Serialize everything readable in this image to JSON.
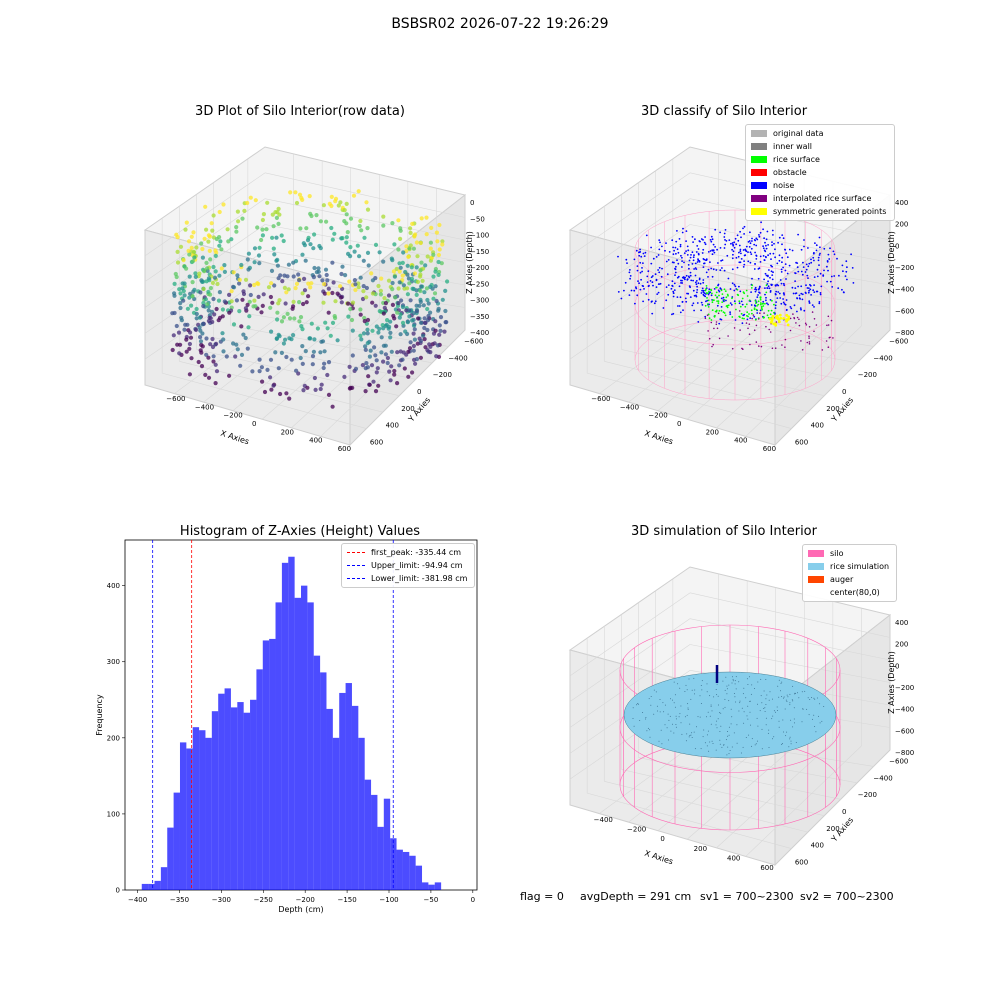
{
  "suptitle": "BSBSR02 2026-07-22 19:26:29",
  "panels": {
    "raw": {
      "title": "3D Plot of Silo Interior(row data)",
      "xlabel": "X Axies",
      "ylabel": "Y Axies",
      "zlabel": "Z Axies (Depth)",
      "xticks": [
        "−600",
        "−400",
        "−200",
        "0",
        "200",
        "400",
        "600"
      ],
      "yticks": [
        "−600",
        "−400",
        "−200",
        "0",
        "200",
        "400",
        "600"
      ],
      "zticks": [
        "0",
        "−50",
        "−100",
        "−150",
        "−200",
        "−250",
        "−300",
        "−350",
        "−400"
      ]
    },
    "classify": {
      "title": "3D classify of Silo Interior",
      "xlabel": "X Axies",
      "ylabel": "Y Axies",
      "zlabel": "Z Axies (Depth)",
      "xticks": [
        "−600",
        "−400",
        "−200",
        "0",
        "200",
        "400",
        "600"
      ],
      "yticks": [
        "−600",
        "−400",
        "−200",
        "0",
        "200",
        "400",
        "600"
      ],
      "zticks": [
        "400",
        "200",
        "0",
        "−200",
        "−400",
        "−600",
        "−800"
      ],
      "legend": [
        {
          "label": "original data",
          "color": "#b3b3b3"
        },
        {
          "label": "inner wall",
          "color": "#808080"
        },
        {
          "label": "rice surface",
          "color": "#00ff00"
        },
        {
          "label": "obstacle",
          "color": "#ff0000"
        },
        {
          "label": "noise",
          "color": "#0000ff"
        },
        {
          "label": "interpolated rice surface",
          "color": "#800080"
        },
        {
          "label": "symmetric generated points",
          "color": "#ffff00"
        }
      ]
    },
    "simulation": {
      "title": "3D simulation of Silo Interior",
      "xlabel": "X Axies",
      "ylabel": "Y Axies",
      "zlabel": "Z Axies (Depth)",
      "xticks": [
        "−400",
        "−200",
        "0",
        "200",
        "400",
        "600"
      ],
      "yticks": [
        "−600",
        "−400",
        "−200",
        "0",
        "200",
        "400",
        "600"
      ],
      "zticks": [
        "400",
        "200",
        "0",
        "−200",
        "−400",
        "−600",
        "−800"
      ],
      "legend": [
        {
          "label": "silo",
          "color": "#ff69b4"
        },
        {
          "label": "rice simulation",
          "color": "#87ceeb"
        },
        {
          "label": "auger",
          "color": "#ff4500"
        },
        {
          "label": "center(80,0)",
          "color": ""
        }
      ]
    }
  },
  "footer": {
    "flag": "flag = 0",
    "avg": "avgDepth = 291 cm",
    "sv1": "sv1 = 700~2300",
    "sv2": "sv2 = 700~2300"
  },
  "chart_data": {
    "type": "bar",
    "title": "Histogram of Z-Axies (Height) Values",
    "xlabel": "Depth (cm)",
    "ylabel": "Frequency",
    "xlim": [
      -415,
      5
    ],
    "ylim": [
      0,
      460
    ],
    "xticks": [
      -400,
      -350,
      -300,
      -250,
      -200,
      -150,
      -100,
      -50,
      0
    ],
    "yticks": [
      0,
      100,
      200,
      300,
      400
    ],
    "bin_width": 7.6,
    "bin_start": -395,
    "color": "#0000ff",
    "values": [
      8,
      8,
      12,
      30,
      82,
      128,
      194,
      186,
      214,
      210,
      200,
      235,
      258,
      265,
      240,
      247,
      233,
      250,
      290,
      328,
      330,
      378,
      430,
      438,
      384,
      400,
      378,
      308,
      286,
      238,
      200,
      259,
      272,
      242,
      200,
      145,
      125,
      83,
      120,
      68,
      53,
      50,
      45,
      32,
      10,
      7,
      10
    ],
    "vlines": [
      {
        "label": "first_peak: -335.44 cm",
        "x": -335.44,
        "color": "#ff0000"
      },
      {
        "label": "Upper_limit: -94.94 cm",
        "x": -94.94,
        "color": "#0000ff"
      },
      {
        "label": "Lower_limit: -381.98 cm",
        "x": -381.98,
        "color": "#0000ff"
      }
    ]
  }
}
